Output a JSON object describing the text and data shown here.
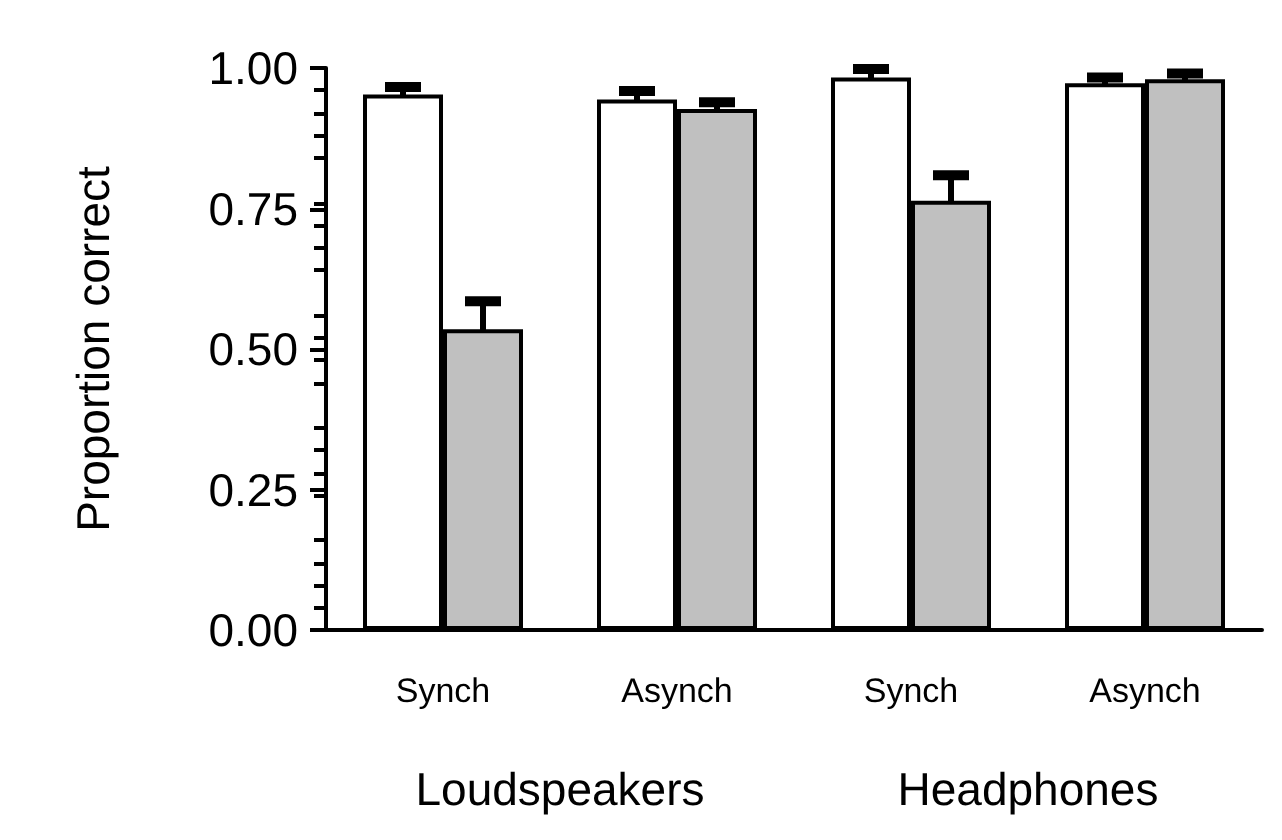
{
  "chart_data": {
    "type": "bar",
    "ylabel": "Proportion correct",
    "categories": [
      "Synch",
      "Asynch",
      "Synch",
      "Asynch"
    ],
    "series": [
      {
        "color": "#ffffff",
        "values": [
          0.953,
          0.944,
          0.983,
          0.973
        ],
        "errors": [
          0.013,
          0.015,
          0.015,
          0.01
        ]
      },
      {
        "color": "#c0c0c0",
        "values": [
          0.535,
          0.927,
          0.764,
          0.98
        ],
        "errors": [
          0.05,
          0.012,
          0.045,
          0.01
        ]
      }
    ],
    "ylim": [
      0,
      1
    ],
    "yticks": [
      {
        "value": 0,
        "label": "0.00"
      },
      0.25,
      {
        "value": 0.5,
        "label": "0.50"
      },
      0.75,
      {
        "value": 1,
        "label": "1.00"
      }
    ],
    "grid": false,
    "annotations": [
      "Loudspeakers",
      "Headphones"
    ]
  }
}
